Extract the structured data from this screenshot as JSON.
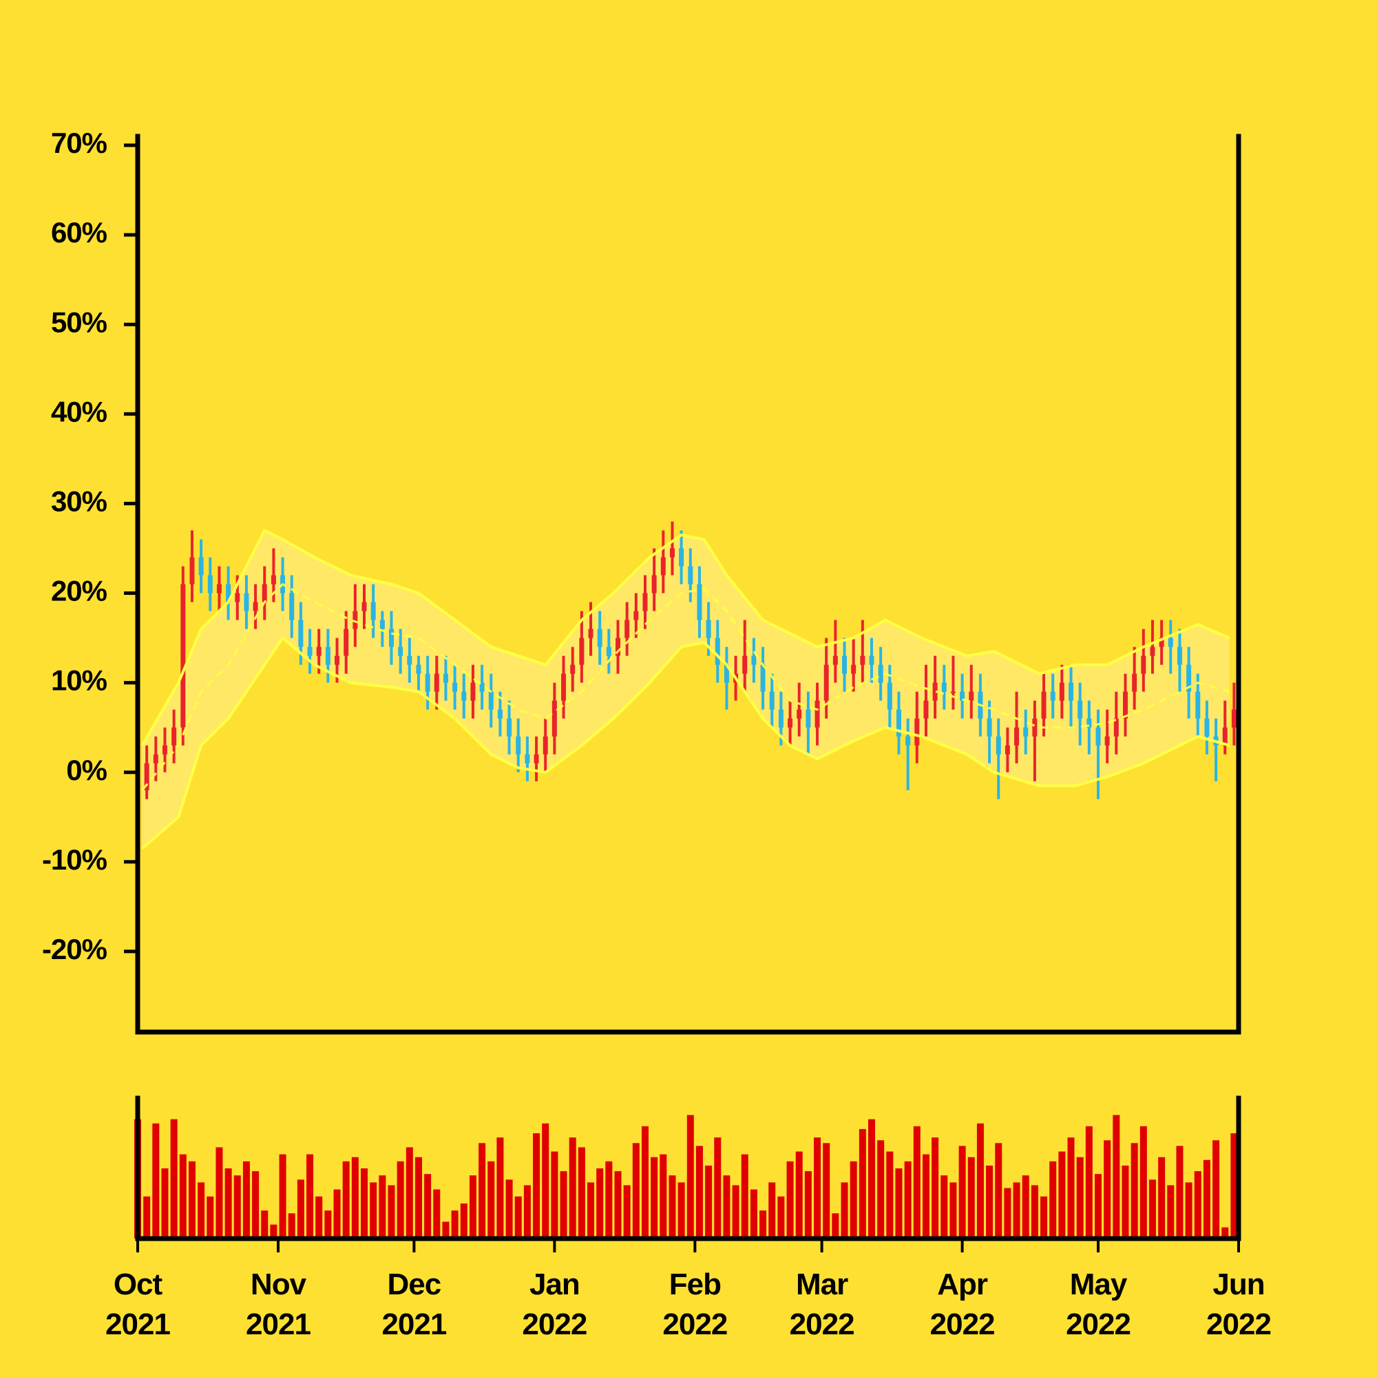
{
  "chart_data": {
    "type": "ohlc",
    "up_color": "#e8242a",
    "down_color": "#2ab4e4",
    "xlim": [
      0,
      243
    ],
    "ylim": [
      -29,
      71
    ],
    "yticks": [
      {
        "value": -20,
        "label": "-20%"
      },
      {
        "value": -10,
        "label": "-10%"
      },
      {
        "value": 0,
        "label": "0%"
      },
      {
        "value": 10,
        "label": "10%"
      },
      {
        "value": 20,
        "label": "20%"
      },
      {
        "value": 30,
        "label": "30%"
      },
      {
        "value": 40,
        "label": "40%"
      },
      {
        "value": 50,
        "label": "50%"
      },
      {
        "value": 60,
        "label": "60%"
      },
      {
        "value": 70,
        "label": "70%"
      }
    ],
    "xticks": [
      {
        "value": 0,
        "label": "Oct 2021"
      },
      {
        "value": 31,
        "label": "Nov 2021"
      },
      {
        "value": 61,
        "label": "Dec 2021"
      },
      {
        "value": 92,
        "label": "Jan 2022"
      },
      {
        "value": 123,
        "label": "Feb 2022"
      },
      {
        "value": 151,
        "label": "Mar 2022"
      },
      {
        "value": 182,
        "label": "Apr 2022"
      },
      {
        "value": 212,
        "label": "May 2022"
      },
      {
        "value": 243,
        "label": "Jun 2022"
      }
    ],
    "x": [
      0,
      2,
      4,
      6,
      8,
      10,
      12,
      14,
      16,
      18,
      20,
      22,
      24,
      26,
      28,
      30,
      32,
      34,
      36,
      38,
      40,
      42,
      44,
      46,
      48,
      50,
      52,
      54,
      56,
      58,
      60,
      62,
      64,
      66,
      68,
      70,
      72,
      74,
      76,
      78,
      80,
      82,
      84,
      86,
      88,
      90,
      92,
      94,
      96,
      98,
      100,
      102,
      104,
      106,
      108,
      110,
      112,
      114,
      116,
      118,
      120,
      122,
      124,
      126,
      128,
      130,
      132,
      134,
      136,
      138,
      140,
      142,
      144,
      146,
      148,
      150,
      152,
      154,
      156,
      158,
      160,
      162,
      164,
      166,
      168,
      170,
      172,
      174,
      176,
      178,
      180,
      182,
      184,
      186,
      188,
      190,
      192,
      194,
      196,
      198,
      200,
      202,
      204,
      206,
      208,
      210,
      212,
      214,
      216,
      218,
      220,
      222,
      224,
      226,
      228,
      230,
      232,
      234,
      236,
      238,
      240,
      242
    ],
    "bars": [
      [
        -4,
        1,
        -6,
        -2
      ],
      [
        -2,
        3,
        -3,
        1
      ],
      [
        1,
        4,
        -1,
        2
      ],
      [
        2,
        5,
        0,
        3
      ],
      [
        3,
        7,
        1,
        5
      ],
      [
        5,
        23,
        3,
        21
      ],
      [
        21,
        27,
        19,
        24
      ],
      [
        24,
        26,
        20,
        22
      ],
      [
        22,
        24,
        18,
        20
      ],
      [
        20,
        23,
        18,
        21
      ],
      [
        21,
        23,
        17,
        19
      ],
      [
        19,
        22,
        17,
        20
      ],
      [
        20,
        22,
        16,
        18
      ],
      [
        18,
        21,
        16,
        19
      ],
      [
        19,
        23,
        17,
        21
      ],
      [
        21,
        25,
        19,
        22
      ],
      [
        22,
        24,
        18,
        20
      ],
      [
        20,
        22,
        15,
        17
      ],
      [
        17,
        19,
        12,
        14
      ],
      [
        14,
        16,
        11,
        13
      ],
      [
        13,
        16,
        11,
        14
      ],
      [
        14,
        16,
        10,
        12
      ],
      [
        12,
        15,
        10,
        13
      ],
      [
        13,
        18,
        11,
        16
      ],
      [
        16,
        21,
        14,
        18
      ],
      [
        18,
        21,
        16,
        19
      ],
      [
        19,
        21,
        15,
        17
      ],
      [
        17,
        18,
        14,
        16
      ],
      [
        16,
        18,
        12,
        14
      ],
      [
        14,
        16,
        11,
        13
      ],
      [
        13,
        15,
        10,
        12
      ],
      [
        12,
        13,
        9,
        11
      ],
      [
        11,
        13,
        7,
        9
      ],
      [
        9,
        13,
        7,
        11
      ],
      [
        11,
        13,
        8,
        10
      ],
      [
        10,
        12,
        7,
        9
      ],
      [
        9,
        11,
        6,
        8
      ],
      [
        8,
        12,
        6,
        10
      ],
      [
        10,
        12,
        7,
        9
      ],
      [
        9,
        11,
        5,
        7
      ],
      [
        7,
        9,
        4,
        6
      ],
      [
        6,
        8,
        2,
        4
      ],
      [
        4,
        6,
        0,
        2
      ],
      [
        2,
        4,
        -1,
        1
      ],
      [
        1,
        4,
        -1,
        2
      ],
      [
        2,
        6,
        0,
        4
      ],
      [
        4,
        10,
        2,
        8
      ],
      [
        8,
        13,
        6,
        11
      ],
      [
        11,
        14,
        9,
        12
      ],
      [
        12,
        18,
        10,
        15
      ],
      [
        15,
        19,
        13,
        16
      ],
      [
        16,
        18,
        12,
        14
      ],
      [
        14,
        16,
        11,
        13
      ],
      [
        13,
        17,
        11,
        15
      ],
      [
        15,
        19,
        13,
        17
      ],
      [
        17,
        20,
        15,
        18
      ],
      [
        18,
        22,
        16,
        20
      ],
      [
        20,
        25,
        18,
        22
      ],
      [
        22,
        27,
        20,
        24
      ],
      [
        24,
        28,
        22,
        25
      ],
      [
        25,
        27,
        21,
        23
      ],
      [
        23,
        25,
        19,
        21
      ],
      [
        21,
        23,
        15,
        17
      ],
      [
        17,
        19,
        13,
        15
      ],
      [
        15,
        17,
        10,
        12
      ],
      [
        12,
        14,
        7,
        10
      ],
      [
        10,
        13,
        8,
        11
      ],
      [
        11,
        17,
        9,
        13
      ],
      [
        13,
        15,
        10,
        12
      ],
      [
        12,
        14,
        7,
        9
      ],
      [
        9,
        11,
        5,
        7
      ],
      [
        7,
        9,
        3,
        5
      ],
      [
        5,
        8,
        3,
        6
      ],
      [
        6,
        10,
        4,
        7
      ],
      [
        7,
        9,
        2,
        5
      ],
      [
        5,
        10,
        3,
        8
      ],
      [
        8,
        15,
        6,
        12
      ],
      [
        12,
        17,
        10,
        13
      ],
      [
        13,
        15,
        9,
        11
      ],
      [
        11,
        15,
        9,
        12
      ],
      [
        12,
        17,
        10,
        13
      ],
      [
        13,
        15,
        10,
        12
      ],
      [
        12,
        14,
        8,
        10
      ],
      [
        10,
        12,
        5,
        7
      ],
      [
        7,
        9,
        2,
        4
      ],
      [
        4,
        6,
        -2,
        3
      ],
      [
        3,
        9,
        1,
        6
      ],
      [
        6,
        12,
        4,
        8
      ],
      [
        8,
        13,
        6,
        10
      ],
      [
        10,
        12,
        7,
        9
      ],
      [
        9,
        13,
        7,
        9
      ],
      [
        9,
        11,
        6,
        8
      ],
      [
        8,
        12,
        6,
        9
      ],
      [
        9,
        11,
        4,
        6
      ],
      [
        6,
        8,
        1,
        4
      ],
      [
        4,
        6,
        -3,
        2
      ],
      [
        2,
        5,
        0,
        3
      ],
      [
        3,
        9,
        1,
        5
      ],
      [
        5,
        7,
        2,
        4
      ],
      [
        4,
        8,
        -1,
        6
      ],
      [
        6,
        11,
        4,
        9
      ],
      [
        9,
        11,
        6,
        8
      ],
      [
        8,
        12,
        6,
        10
      ],
      [
        10,
        12,
        5,
        8
      ],
      [
        8,
        10,
        3,
        6
      ],
      [
        6,
        8,
        2,
        5
      ],
      [
        5,
        7,
        -3,
        3
      ],
      [
        3,
        7,
        1,
        4
      ],
      [
        4,
        9,
        2,
        6
      ],
      [
        6,
        11,
        4,
        9
      ],
      [
        9,
        14,
        7,
        11
      ],
      [
        11,
        16,
        9,
        13
      ],
      [
        13,
        17,
        11,
        14
      ],
      [
        14,
        17,
        12,
        15
      ],
      [
        15,
        17,
        11,
        14
      ],
      [
        14,
        16,
        9,
        12
      ],
      [
        12,
        14,
        6,
        9
      ],
      [
        9,
        11,
        4,
        6
      ],
      [
        6,
        8,
        2,
        4
      ],
      [
        4,
        6,
        -1,
        3
      ],
      [
        3,
        8,
        2,
        5
      ],
      [
        5,
        10,
        3,
        7
      ]
    ],
    "volume": {
      "color": "#e00000",
      "ylim": [
        0,
        100
      ],
      "values": [
        85,
        30,
        82,
        50,
        85,
        60,
        55,
        40,
        30,
        65,
        50,
        45,
        55,
        48,
        20,
        10,
        60,
        18,
        42,
        60,
        30,
        20,
        35,
        55,
        58,
        50,
        40,
        45,
        38,
        55,
        65,
        58,
        46,
        35,
        12,
        20,
        25,
        45,
        68,
        55,
        72,
        42,
        30,
        38,
        75,
        82,
        62,
        48,
        72,
        65,
        40,
        50,
        55,
        48,
        38,
        68,
        80,
        58,
        60,
        45,
        40,
        88,
        66,
        52,
        72,
        45,
        38,
        60,
        35,
        20,
        40,
        30,
        55,
        62,
        48,
        72,
        68,
        18,
        40,
        55,
        78,
        85,
        70,
        62,
        50,
        55,
        80,
        60,
        72,
        45,
        40,
        66,
        58,
        82,
        52,
        68,
        36,
        40,
        45,
        38,
        30,
        55,
        62,
        72,
        58,
        80,
        46,
        70,
        88,
        52,
        68,
        80,
        42,
        58,
        38,
        66,
        40,
        48,
        56,
        70,
        8,
        75
      ]
    },
    "bands": {
      "line_color": "#ffff44",
      "fill_color": "#ffe866",
      "x": [
        1,
        9,
        14,
        20,
        28,
        32,
        39,
        47,
        56,
        62,
        70,
        78,
        84,
        90,
        98,
        105,
        113,
        120,
        125,
        130,
        138,
        144,
        150,
        158,
        165,
        173,
        183,
        189,
        199,
        207,
        214,
        222,
        234,
        241
      ],
      "upper": [
        3,
        10,
        16,
        19,
        27,
        26,
        24,
        22,
        21,
        20,
        17,
        14,
        13,
        12,
        17,
        20,
        24,
        26.5,
        26,
        22,
        17,
        15.5,
        14,
        15,
        17,
        15,
        13,
        13.5,
        11,
        12,
        12,
        14,
        16.5,
        15
      ],
      "middle": [
        -2,
        3,
        9,
        12,
        19,
        21,
        19,
        17,
        15.5,
        15,
        12,
        9,
        7,
        6,
        9,
        13,
        17,
        20,
        20.5,
        18,
        12,
        8,
        7,
        9.5,
        11,
        9.5,
        8,
        7,
        5,
        5,
        5.5,
        7,
        10,
        9
      ],
      "lower": [
        -8.5,
        -5,
        3,
        6,
        12,
        15,
        12,
        10,
        9.5,
        9,
        6,
        2,
        0.5,
        0,
        3,
        6,
        10,
        14,
        14.5,
        12,
        6,
        3,
        1.5,
        3.5,
        5,
        4,
        2,
        0,
        -1.5,
        -1.5,
        -0.5,
        1,
        4,
        3
      ]
    }
  }
}
